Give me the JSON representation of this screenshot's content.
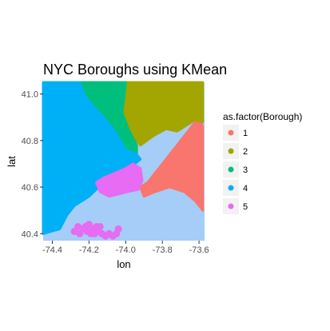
{
  "chart_data": {
    "type": "scatter",
    "title": "NYC Boroughs using KMean",
    "xlabel": "lon",
    "ylabel": "lat",
    "xlim": [
      -74.45,
      -73.57
    ],
    "ylim": [
      40.37,
      41.05
    ],
    "x_ticks": [
      {
        "value": -74.4,
        "label": "-74.4"
      },
      {
        "value": -74.2,
        "label": "-74.2"
      },
      {
        "value": -74.0,
        "label": "-74.0"
      },
      {
        "value": -73.8,
        "label": "-73.8"
      },
      {
        "value": -73.6,
        "label": "-73.6"
      }
    ],
    "y_ticks": [
      {
        "value": 41.0,
        "label": "41.0"
      },
      {
        "value": 40.8,
        "label": "40.8"
      },
      {
        "value": 40.6,
        "label": "40.6"
      },
      {
        "value": 40.4,
        "label": "40.4"
      }
    ],
    "legend": {
      "title": "as.factor(Borough)",
      "position": "right",
      "entries": [
        {
          "label": "1",
          "color": "#F8766D"
        },
        {
          "label": "2",
          "color": "#A3A500"
        },
        {
          "label": "3",
          "color": "#00BF7D"
        },
        {
          "label": "4",
          "color": "#00B0F6"
        },
        {
          "label": "5",
          "color": "#E76BF3"
        }
      ]
    },
    "background": "map tiles (water #a5cdf7, land #e6e2d8)",
    "grid": false,
    "series": [
      {
        "label": "1",
        "color": "#F8766D",
        "polygon": [
          [
            -73.88,
            40.62
          ],
          [
            -73.8,
            40.7
          ],
          [
            -73.72,
            40.78
          ],
          [
            -73.65,
            40.85
          ],
          [
            -73.6,
            40.9
          ],
          [
            -73.58,
            40.86
          ],
          [
            -73.58,
            40.5
          ],
          [
            -73.62,
            40.54
          ],
          [
            -73.68,
            40.58
          ],
          [
            -73.76,
            40.6
          ],
          [
            -73.84,
            40.58
          ],
          [
            -73.9,
            40.56
          ],
          [
            -73.92,
            40.6
          ]
        ]
      },
      {
        "label": "2",
        "color": "#A3A500",
        "polygon": [
          [
            -74.0,
            41.05
          ],
          [
            -73.58,
            41.05
          ],
          [
            -73.58,
            40.88
          ],
          [
            -73.62,
            40.89
          ],
          [
            -73.68,
            40.86
          ],
          [
            -73.72,
            40.84
          ],
          [
            -73.78,
            40.85
          ],
          [
            -73.85,
            40.82
          ],
          [
            -73.92,
            40.78
          ],
          [
            -73.98,
            40.84
          ],
          [
            -74.02,
            40.92
          ],
          [
            -74.01,
            40.98
          ]
        ]
      },
      {
        "label": "3",
        "color": "#00BF7D",
        "polygon": [
          [
            -74.25,
            41.05
          ],
          [
            -74.0,
            41.05
          ],
          [
            -74.01,
            40.98
          ],
          [
            -74.02,
            40.92
          ],
          [
            -73.98,
            40.84
          ],
          [
            -73.94,
            40.78
          ],
          [
            -73.94,
            40.74
          ],
          [
            -74.0,
            40.76
          ],
          [
            -74.06,
            40.84
          ],
          [
            -74.12,
            40.9
          ],
          [
            -74.18,
            40.95
          ],
          [
            -74.23,
            41.0
          ]
        ]
      },
      {
        "label": "4",
        "color": "#00B0F6",
        "polygon": [
          [
            -74.45,
            41.05
          ],
          [
            -74.25,
            41.05
          ],
          [
            -74.23,
            41.0
          ],
          [
            -74.18,
            40.95
          ],
          [
            -74.12,
            40.9
          ],
          [
            -74.06,
            40.84
          ],
          [
            -74.0,
            40.76
          ],
          [
            -73.94,
            40.74
          ],
          [
            -73.92,
            40.72
          ],
          [
            -73.98,
            40.68
          ],
          [
            -74.05,
            40.66
          ],
          [
            -74.12,
            40.62
          ],
          [
            -74.2,
            40.56
          ],
          [
            -74.28,
            40.52
          ],
          [
            -74.32,
            40.48
          ],
          [
            -74.36,
            40.42
          ],
          [
            -74.45,
            40.4
          ]
        ]
      },
      {
        "label": "5",
        "color": "#E76BF3",
        "polygon": [
          [
            -74.06,
            40.66
          ],
          [
            -74.0,
            40.68
          ],
          [
            -73.96,
            40.7
          ],
          [
            -73.92,
            40.68
          ],
          [
            -73.91,
            40.63
          ],
          [
            -73.93,
            40.59
          ],
          [
            -73.99,
            40.58
          ],
          [
            -74.04,
            40.57
          ],
          [
            -74.09,
            40.56
          ],
          [
            -74.14,
            40.58
          ],
          [
            -74.16,
            40.62
          ],
          [
            -74.12,
            40.64
          ]
        ],
        "extra_points": [
          {
            "x": -74.28,
            "y": 40.41
          },
          {
            "x": -74.25,
            "y": 40.4
          },
          {
            "x": -74.23,
            "y": 40.42
          },
          {
            "x": -74.21,
            "y": 40.41
          },
          {
            "x": -74.19,
            "y": 40.4
          },
          {
            "x": -74.17,
            "y": 40.4
          },
          {
            "x": -74.15,
            "y": 40.41
          },
          {
            "x": -74.13,
            "y": 40.4
          },
          {
            "x": -74.11,
            "y": 40.39
          },
          {
            "x": -74.09,
            "y": 40.4
          },
          {
            "x": -74.07,
            "y": 40.39
          },
          {
            "x": -74.05,
            "y": 40.4
          },
          {
            "x": -74.26,
            "y": 40.43
          },
          {
            "x": -74.22,
            "y": 40.43
          },
          {
            "x": -74.18,
            "y": 40.42
          },
          {
            "x": -74.14,
            "y": 40.43
          },
          {
            "x": -74.2,
            "y": 40.44
          },
          {
            "x": -74.16,
            "y": 40.43
          },
          {
            "x": -74.04,
            "y": 40.42
          }
        ]
      }
    ]
  }
}
